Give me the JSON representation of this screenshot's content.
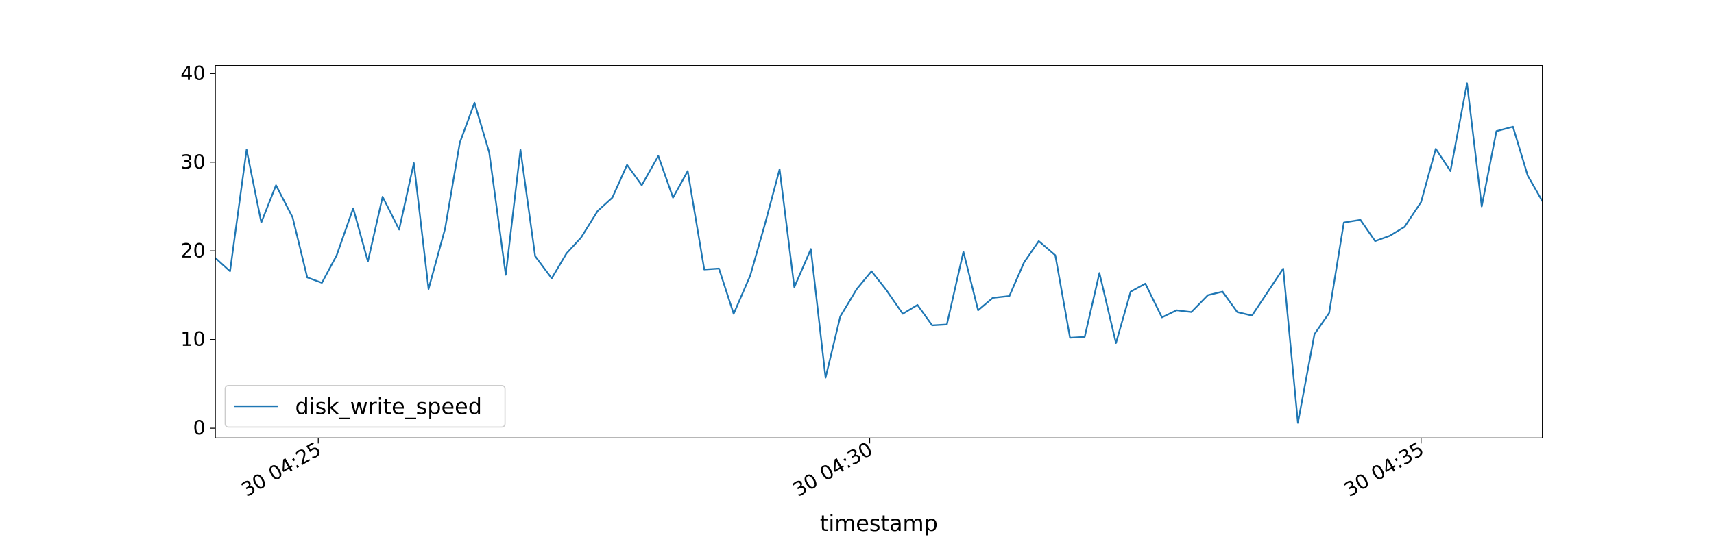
{
  "chart_data": {
    "type": "line",
    "xlabel": "timestamp",
    "x": [
      "04:24:04",
      "04:24:12",
      "04:24:21",
      "04:24:29",
      "04:24:37",
      "04:24:46",
      "04:24:54",
      "04:25:02",
      "04:25:10",
      "04:25:19",
      "04:25:27",
      "04:25:35",
      "04:25:44",
      "04:25:52",
      "04:26:00",
      "04:26:09",
      "04:26:17",
      "04:26:25",
      "04:26:33",
      "04:26:42",
      "04:26:50",
      "04:26:58",
      "04:27:07",
      "04:27:15",
      "04:27:23",
      "04:27:32",
      "04:27:40",
      "04:27:48",
      "04:27:56",
      "04:28:05",
      "04:28:13",
      "04:28:21",
      "04:28:30",
      "04:28:38",
      "04:28:46",
      "04:28:55",
      "04:29:03",
      "04:29:11",
      "04:29:19",
      "04:29:28",
      "04:29:36",
      "04:29:44",
      "04:29:53",
      "04:30:01",
      "04:30:09",
      "04:30:18",
      "04:30:26",
      "04:30:34",
      "04:30:42",
      "04:30:51",
      "04:30:59",
      "04:31:07",
      "04:31:16",
      "04:31:24",
      "04:31:32",
      "04:31:41",
      "04:31:49",
      "04:31:57",
      "04:32:05",
      "04:32:14",
      "04:32:22",
      "04:32:30",
      "04:32:39",
      "04:32:47",
      "04:32:55",
      "04:33:04",
      "04:33:12",
      "04:33:20",
      "04:33:28",
      "04:33:37",
      "04:33:45",
      "04:33:53",
      "04:34:02",
      "04:34:10",
      "04:34:18",
      "04:34:27",
      "04:34:35",
      "04:34:43",
      "04:34:51",
      "04:35:00",
      "04:35:08",
      "04:35:16",
      "04:35:25",
      "04:35:33",
      "04:35:41",
      "04:35:50",
      "04:35:58",
      "04:36:06"
    ],
    "series": [
      {
        "name": "disk_write_speed",
        "color": "#1f77b4",
        "values": [
          19.2,
          17.7,
          31.4,
          23.2,
          27.4,
          23.8,
          17,
          16.4,
          19.5,
          24.8,
          18.8,
          26.1,
          22.4,
          29.9,
          15.7,
          22.5,
          32.2,
          36.7,
          31.1,
          17.3,
          31.4,
          19.4,
          16.9,
          19.7,
          21.5,
          24.5,
          26,
          29.7,
          27.4,
          30.7,
          26,
          29,
          17.9,
          18,
          12.9,
          17.2,
          23,
          29.2,
          15.9,
          20.2,
          5.7,
          12.6,
          15.7,
          17.7,
          15.6,
          12.9,
          13.9,
          11.6,
          11.7,
          19.9,
          13.3,
          14.7,
          14.9,
          18.7,
          21.1,
          19.5,
          10.2,
          10.3,
          17.5,
          9.6,
          15.4,
          16.3,
          12.5,
          13.3,
          13.1,
          15,
          15.4,
          13.1,
          12.7,
          15.5,
          18,
          0.6,
          10.6,
          13,
          23.2,
          23.5,
          21.1,
          21.7,
          22.7,
          25.5,
          31.5,
          29,
          38.9,
          25,
          33.5,
          34,
          28.5,
          25.6
        ]
      }
    ],
    "xlim": [
      "04:24:04",
      "04:36:06"
    ],
    "xticks": [
      {
        "value": "04:25:00",
        "label": "30 04:25"
      },
      {
        "value": "04:30:00",
        "label": "30 04:30"
      },
      {
        "value": "04:35:00",
        "label": "30 04:35"
      }
    ],
    "ylim": [
      -1.1,
      40.9
    ],
    "yticks": [
      0,
      10,
      20,
      30,
      40
    ],
    "legend": "lower left"
  }
}
